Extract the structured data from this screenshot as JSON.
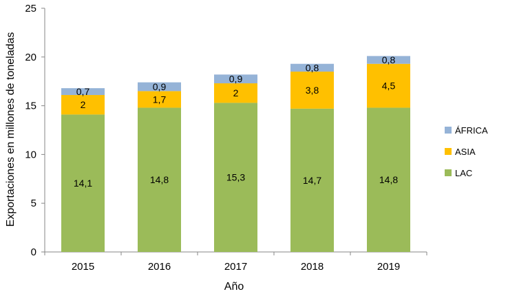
{
  "chart_data": {
    "type": "bar",
    "stacked": true,
    "title": "",
    "xlabel": "Año",
    "ylabel": "Exportaciones en millones de toneladas",
    "ylim": [
      0,
      25
    ],
    "yticks": [
      "0",
      "5",
      "10",
      "15",
      "20",
      "25"
    ],
    "categories": [
      "2015",
      "2016",
      "2017",
      "2018",
      "2019"
    ],
    "series": [
      {
        "name": "LAC",
        "color": "#9bbb59",
        "values": [
          14.1,
          14.8,
          15.3,
          14.7,
          14.8
        ],
        "labels": [
          "14,1",
          "14,8",
          "15,3",
          "14,7",
          "14,8"
        ]
      },
      {
        "name": "ASIA",
        "color": "#ffc000",
        "values": [
          2,
          1.7,
          2,
          3.8,
          4.5
        ],
        "labels": [
          "2",
          "1,7",
          "2",
          "3,8",
          "4,5"
        ]
      },
      {
        "name": "ÁFRICA",
        "color": "#95b3d7",
        "values": [
          0.7,
          0.9,
          0.9,
          0.8,
          0.8
        ],
        "labels": [
          "0,7",
          "0,9",
          "0,9",
          "0,8",
          "0,8"
        ]
      }
    ],
    "legend": {
      "position": "right",
      "order": [
        "ÁFRICA",
        "ASIA",
        "LAC"
      ]
    },
    "grid": false
  }
}
